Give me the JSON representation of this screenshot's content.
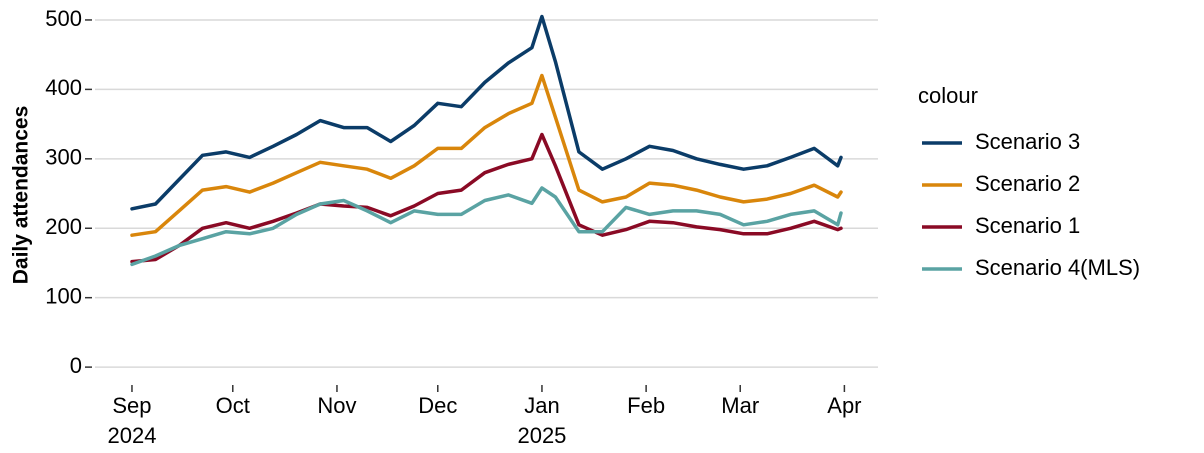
{
  "chart_data": {
    "type": "line",
    "y_label": "Daily attendances",
    "legend_title": "colour",
    "legend": "right",
    "grid": true,
    "x": [
      "2024-09-01",
      "2024-09-08",
      "2024-09-15",
      "2024-09-22",
      "2024-09-29",
      "2024-10-06",
      "2024-10-13",
      "2024-10-20",
      "2024-10-27",
      "2024-11-03",
      "2024-11-10",
      "2024-11-17",
      "2024-11-24",
      "2024-12-01",
      "2024-12-08",
      "2024-12-15",
      "2024-12-22",
      "2024-12-29",
      "2025-01-01",
      "2025-01-05",
      "2025-01-12",
      "2025-01-19",
      "2025-01-26",
      "2025-02-02",
      "2025-02-09",
      "2025-02-16",
      "2025-02-23",
      "2025-03-02",
      "2025-03-09",
      "2025-03-16",
      "2025-03-23",
      "2025-03-30",
      "2025-03-31"
    ],
    "xlim": [
      "2024-08-21",
      "2025-04-11"
    ],
    "xticks": [
      {
        "value": "2024-09-01",
        "label": "Sep\n2024"
      },
      {
        "value": "2024-10-01",
        "label": "Oct"
      },
      {
        "value": "2024-11-01",
        "label": "Nov"
      },
      {
        "value": "2024-12-01",
        "label": "Dec"
      },
      {
        "value": "2025-01-01",
        "label": "Jan\n2025"
      },
      {
        "value": "2025-02-01",
        "label": "Feb"
      },
      {
        "value": "2025-03-01",
        "label": "Mar"
      },
      {
        "value": "2025-04-01",
        "label": "Apr"
      }
    ],
    "ylim": [
      -20,
      525
    ],
    "yticks": [
      0,
      100,
      200,
      300,
      400,
      500
    ],
    "series": [
      {
        "name": "Scenario 3",
        "color": "#0b3c68",
        "values": [
          228,
          235,
          270,
          305,
          310,
          302,
          318,
          335,
          355,
          345,
          345,
          325,
          348,
          380,
          375,
          410,
          438,
          460,
          505,
          440,
          310,
          285,
          300,
          318,
          312,
          300,
          292,
          285,
          290,
          302,
          315,
          290,
          302
        ]
      },
      {
        "name": "Scenario 2",
        "color": "#d9860b",
        "values": [
          190,
          195,
          225,
          255,
          260,
          252,
          265,
          280,
          295,
          290,
          285,
          272,
          290,
          315,
          315,
          345,
          365,
          380,
          420,
          360,
          255,
          238,
          245,
          265,
          262,
          255,
          245,
          238,
          242,
          250,
          262,
          245,
          252
        ]
      },
      {
        "name": "Scenario 1",
        "color": "#8a0a25",
        "values": [
          152,
          155,
          175,
          200,
          208,
          200,
          210,
          222,
          235,
          232,
          230,
          218,
          232,
          250,
          255,
          280,
          292,
          300,
          335,
          290,
          205,
          190,
          198,
          210,
          208,
          202,
          198,
          192,
          192,
          200,
          210,
          198,
          200
        ]
      },
      {
        "name": "Scenario 4(MLS)",
        "color": "#5aa3a3",
        "values": [
          148,
          160,
          175,
          185,
          195,
          192,
          200,
          220,
          235,
          240,
          225,
          208,
          225,
          220,
          220,
          240,
          248,
          236,
          258,
          245,
          195,
          195,
          230,
          220,
          225,
          225,
          220,
          205,
          210,
          220,
          225,
          205,
          222
        ]
      }
    ]
  }
}
